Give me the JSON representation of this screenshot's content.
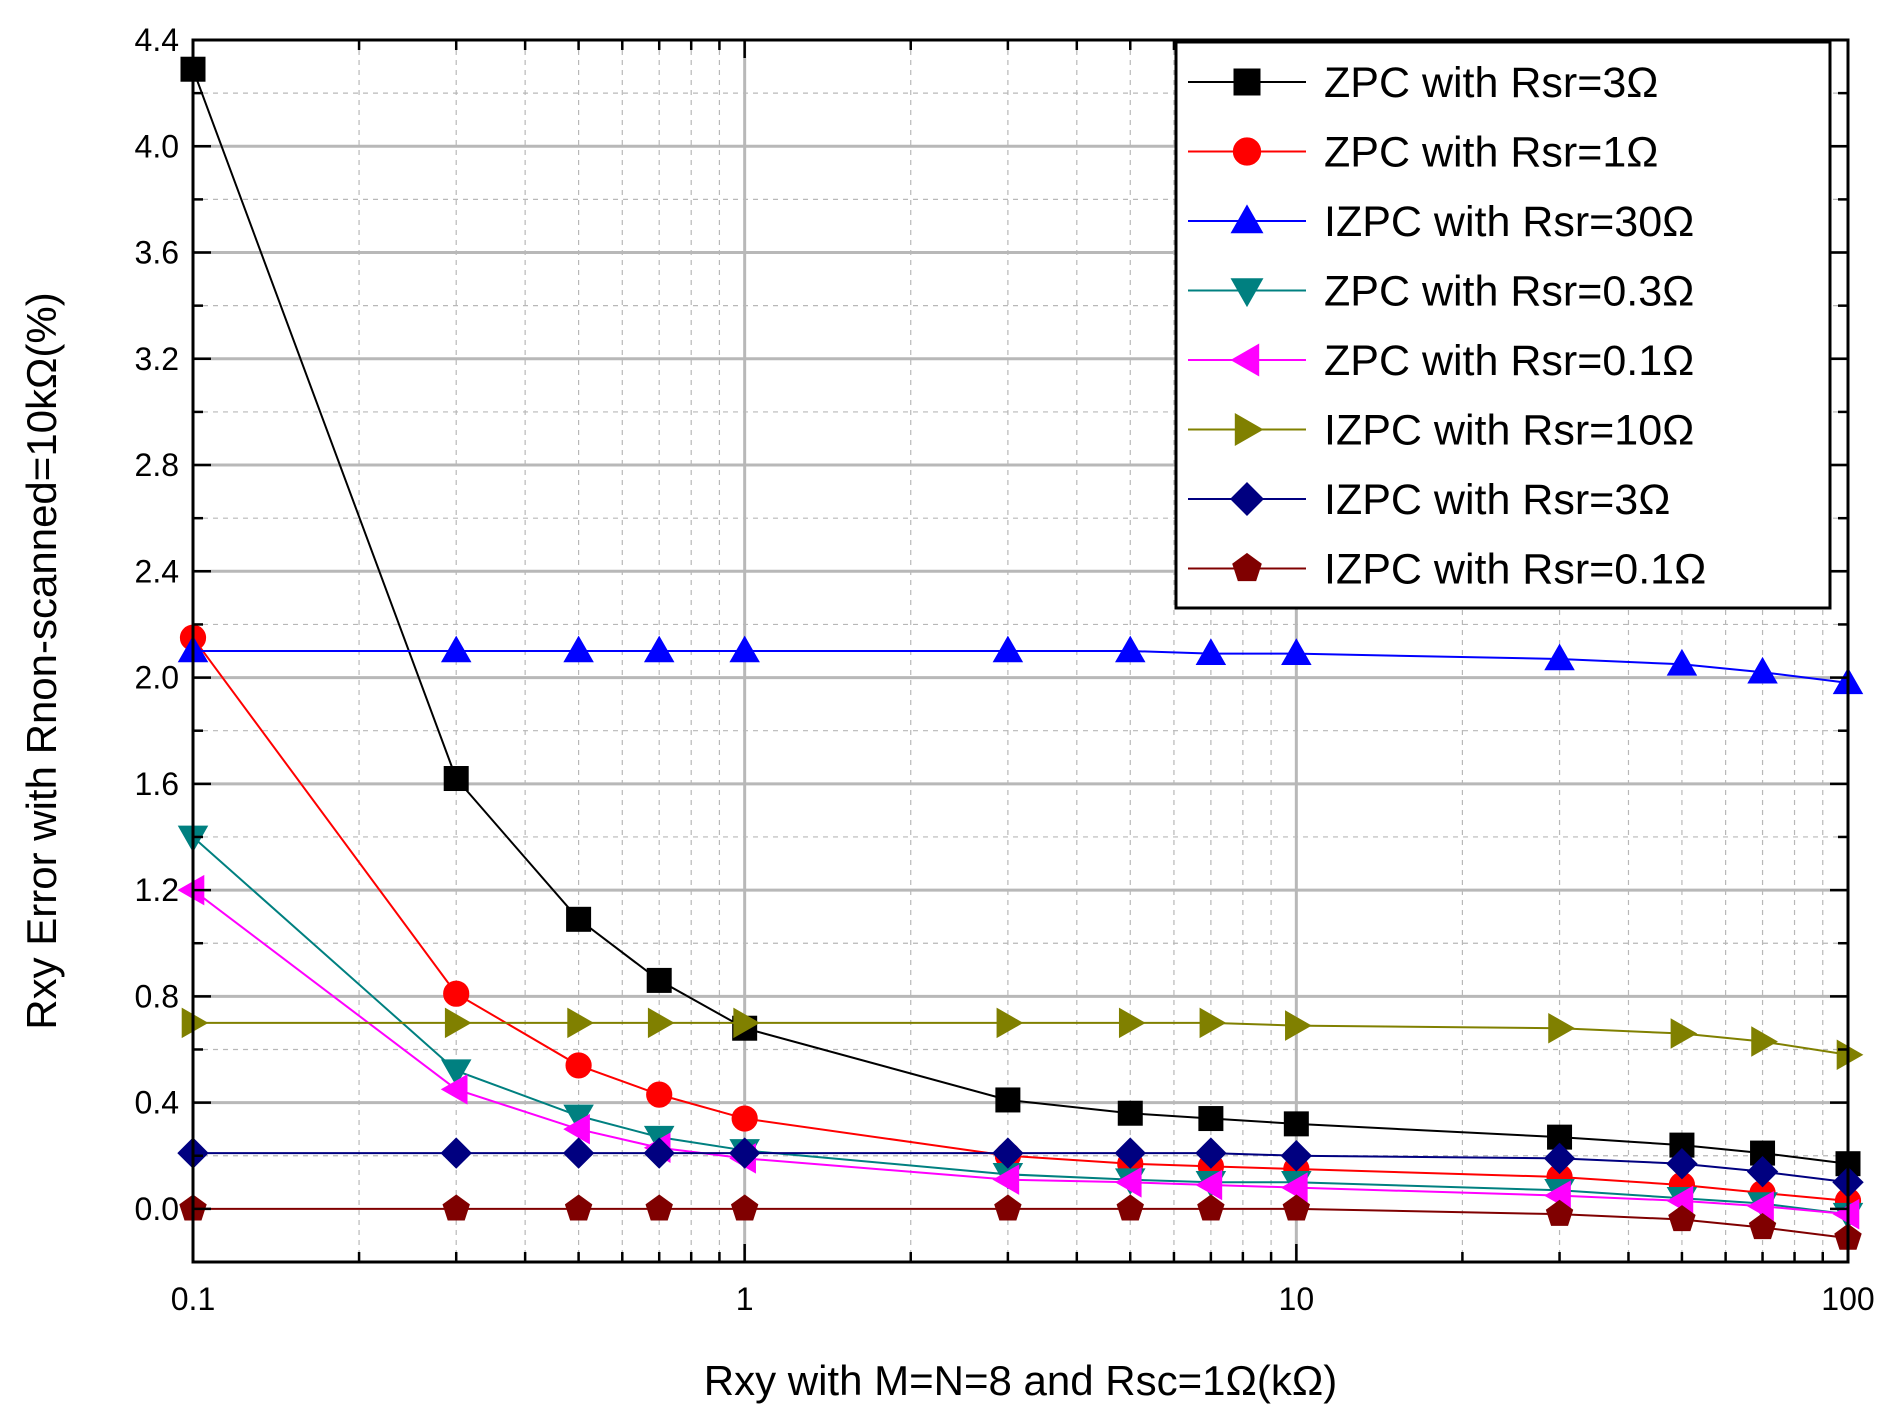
{
  "chart_data": {
    "type": "line",
    "xscale": "log",
    "xlabel": "Rxy with M=N=8 and Rsc=1Ω(kΩ)",
    "ylabel": "Rxy Error with Rnon-scanned=10kΩ(%)",
    "xlim": [
      0.1,
      100
    ],
    "ylim": [
      -0.2,
      4.4
    ],
    "xticks": [
      0.1,
      1,
      10,
      100
    ],
    "xtick_labels": [
      "0.1",
      "1",
      "10",
      "100"
    ],
    "yticks": [
      0.0,
      0.4,
      0.8,
      1.2,
      1.6,
      2.0,
      2.4,
      2.8,
      3.2,
      3.6,
      4.0,
      4.4
    ],
    "ytick_labels": [
      "0.0",
      "0.4",
      "0.8",
      "1.2",
      "1.6",
      "2.0",
      "2.4",
      "2.8",
      "3.2",
      "3.6",
      "4.0",
      "4.4"
    ],
    "grid": true,
    "legend_position": "top-right",
    "x": [
      0.1,
      0.3,
      0.5,
      0.7,
      1,
      3,
      5,
      7,
      10,
      30,
      50,
      70,
      100
    ],
    "series": [
      {
        "name": "ZPC with Rsr=3Ω",
        "color": "#000000",
        "marker": "square",
        "values": [
          4.29,
          1.62,
          1.09,
          0.86,
          0.68,
          0.41,
          0.36,
          0.34,
          0.32,
          0.27,
          0.24,
          0.21,
          0.17
        ]
      },
      {
        "name": "ZPC with Rsr=1Ω",
        "color": "#ff0000",
        "marker": "circle",
        "values": [
          2.15,
          0.81,
          0.54,
          0.43,
          0.34,
          0.2,
          0.17,
          0.16,
          0.15,
          0.12,
          0.09,
          0.06,
          0.03
        ]
      },
      {
        "name": "IZPC with Rsr=30Ω",
        "color": "#0000ff",
        "marker": "triangle-up",
        "values": [
          2.1,
          2.1,
          2.1,
          2.1,
          2.1,
          2.1,
          2.1,
          2.09,
          2.09,
          2.07,
          2.05,
          2.02,
          1.98
        ]
      },
      {
        "name": "ZPC with Rsr=0.3Ω",
        "color": "#008080",
        "marker": "triangle-down",
        "values": [
          1.4,
          0.52,
          0.35,
          0.27,
          0.22,
          0.13,
          0.11,
          0.1,
          0.1,
          0.07,
          0.04,
          0.02,
          -0.02
        ]
      },
      {
        "name": "ZPC with Rsr=0.1Ω",
        "color": "#ff00ff",
        "marker": "triangle-left",
        "values": [
          1.2,
          0.45,
          0.3,
          0.23,
          0.19,
          0.11,
          0.1,
          0.09,
          0.08,
          0.05,
          0.03,
          0.01,
          -0.02
        ]
      },
      {
        "name": "IZPC with Rsr=10Ω",
        "color": "#808000",
        "marker": "triangle-right",
        "values": [
          0.7,
          0.7,
          0.7,
          0.7,
          0.7,
          0.7,
          0.7,
          0.7,
          0.69,
          0.68,
          0.66,
          0.63,
          0.58
        ]
      },
      {
        "name": "IZPC with Rsr=3Ω",
        "color": "#000080",
        "marker": "diamond",
        "values": [
          0.21,
          0.21,
          0.21,
          0.21,
          0.21,
          0.21,
          0.21,
          0.21,
          0.2,
          0.19,
          0.17,
          0.14,
          0.1
        ]
      },
      {
        "name": "IZPC with Rsr=0.1Ω",
        "color": "#800000",
        "marker": "pentagon",
        "values": [
          0.0,
          0.0,
          0.0,
          0.0,
          0.0,
          0.0,
          0.0,
          0.0,
          0.0,
          -0.02,
          -0.04,
          -0.07,
          -0.11
        ]
      }
    ]
  }
}
